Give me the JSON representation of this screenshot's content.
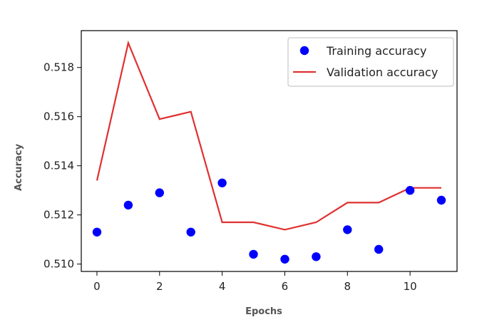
{
  "chart_data": {
    "type": "line",
    "title": "",
    "xlabel": "Epochs",
    "ylabel": "Accuracy",
    "xlim": [
      -0.5,
      11.5
    ],
    "ylim": [
      0.5097,
      0.5195
    ],
    "xticks": [
      0,
      2,
      4,
      6,
      8,
      10
    ],
    "yticks": [
      0.51,
      0.512,
      0.514,
      0.516,
      0.518
    ],
    "ytick_labels": [
      "0.510",
      "0.512",
      "0.514",
      "0.516",
      "0.518"
    ],
    "x": [
      0,
      1,
      2,
      3,
      4,
      5,
      6,
      7,
      8,
      9,
      10,
      11
    ],
    "grid": false,
    "legend_position": "top-right",
    "series": [
      {
        "name": "Training accuracy",
        "style": "scatter",
        "color": "#0000ff",
        "values": [
          0.5113,
          0.5124,
          0.5129,
          0.5113,
          0.5133,
          0.5104,
          0.5102,
          0.5103,
          0.5114,
          0.5106,
          0.513,
          0.5126
        ]
      },
      {
        "name": "Validation accuracy",
        "style": "line",
        "color": "#e03030",
        "values": [
          0.5134,
          0.519,
          0.5159,
          0.5162,
          0.5117,
          0.5117,
          0.5114,
          0.5117,
          0.5125,
          0.5125,
          0.5131,
          0.5131
        ]
      }
    ]
  }
}
